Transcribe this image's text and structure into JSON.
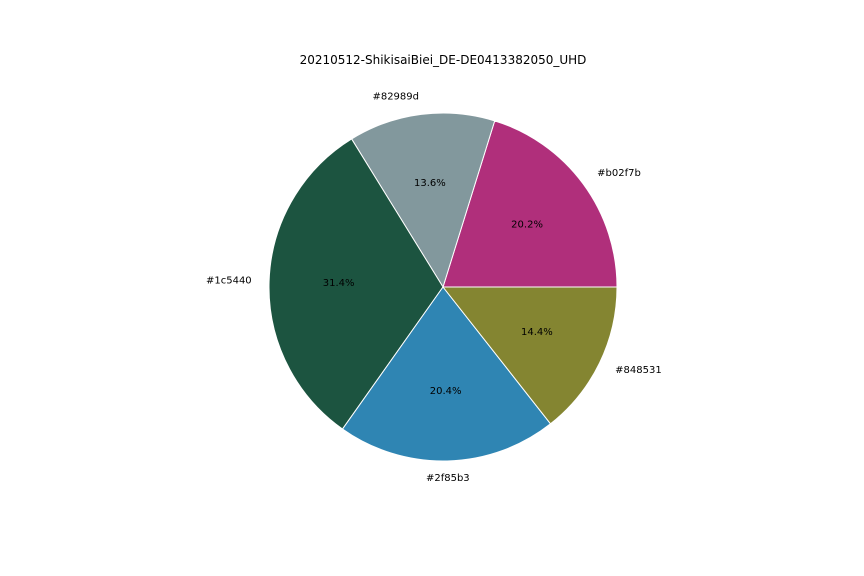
{
  "chart_data": {
    "type": "pie",
    "title": "20210512-ShikisaiBiei_DE-DE0413382050_UHD",
    "start_angle_deg": 0,
    "direction": "counterclockwise",
    "slices": [
      {
        "label": "#b02f7b",
        "value": 20.2,
        "pct_label": "20.2%",
        "color": "#b02f7b"
      },
      {
        "label": "#82989d",
        "value": 13.6,
        "pct_label": "13.6%",
        "color": "#82989d"
      },
      {
        "label": "#1c5440",
        "value": 31.4,
        "pct_label": "31.4%",
        "color": "#1c5440"
      },
      {
        "label": "#2f85b3",
        "value": 20.4,
        "pct_label": "20.4%",
        "color": "#2f85b3"
      },
      {
        "label": "#848531",
        "value": 14.4,
        "pct_label": "14.4%",
        "color": "#848531"
      }
    ]
  }
}
